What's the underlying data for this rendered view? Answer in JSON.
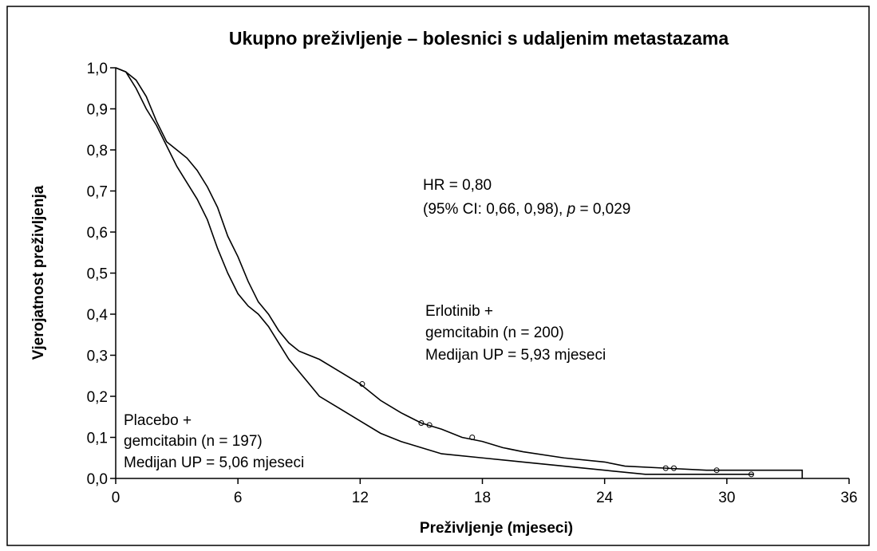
{
  "chart_data": {
    "type": "line",
    "title": "Ukupno preživljenje – bolesnici s udaljenim metastazama",
    "x_label": "Preživljenje (mjeseci)",
    "y_label": "Vjerojatnost preživljenja",
    "xlim": [
      0,
      36
    ],
    "xticks": [
      0,
      6,
      12,
      18,
      24,
      30,
      36
    ],
    "ylim": [
      0,
      1
    ],
    "yticks": [
      {
        "value": 0,
        "label": "0,0"
      },
      {
        "value": 0.1,
        "label": "0,1"
      },
      {
        "value": 0.2,
        "label": "0,2"
      },
      {
        "value": 0.3,
        "label": "0,3"
      },
      {
        "value": 0.4,
        "label": "0,4"
      },
      {
        "value": 0.5,
        "label": "0,5"
      },
      {
        "value": 0.6,
        "label": "0,6"
      },
      {
        "value": 0.7,
        "label": "0,7"
      },
      {
        "value": 0.8,
        "label": "0,8"
      },
      {
        "value": 0.9,
        "label": "0,9"
      },
      {
        "value": 1,
        "label": "1,0"
      }
    ],
    "series": [
      {
        "color": "#000000",
        "x": [
          0,
          0.5,
          1,
          1.5,
          2,
          2.5,
          3,
          3.5,
          4,
          4.5,
          5,
          5.5,
          6,
          6.5,
          7,
          7.5,
          8,
          8.5,
          9,
          10,
          11,
          12,
          13,
          14,
          15,
          16,
          17,
          18,
          19,
          20,
          22,
          24,
          25,
          27,
          29,
          31,
          33.7,
          33.7
        ],
        "values": [
          1,
          0.99,
          0.97,
          0.93,
          0.87,
          0.82,
          0.8,
          0.78,
          0.75,
          0.71,
          0.66,
          0.59,
          0.54,
          0.48,
          0.43,
          0.4,
          0.36,
          0.33,
          0.31,
          0.29,
          0.26,
          0.23,
          0.19,
          0.16,
          0.135,
          0.12,
          0.1,
          0.09,
          0.075,
          0.065,
          0.05,
          0.04,
          0.03,
          0.025,
          0.02,
          0.02,
          0.02,
          0
        ],
        "censored": {
          "x": [
            12.1,
            15,
            15.4,
            17.5,
            27,
            27.4,
            29.5
          ],
          "values": [
            0.23,
            0.135,
            0.13,
            0.1,
            0.025,
            0.025,
            0.02
          ]
        }
      },
      {
        "color": "#000000",
        "x": [
          0,
          0.5,
          1,
          1.5,
          2,
          2.5,
          3,
          3.5,
          4,
          4.5,
          5,
          5.5,
          6,
          6.5,
          7,
          7.5,
          8,
          8.5,
          9,
          9.5,
          10,
          11,
          12,
          13,
          14,
          15,
          16,
          18,
          20,
          22,
          24,
          26,
          29,
          31.3
        ],
        "values": [
          1,
          0.99,
          0.95,
          0.9,
          0.86,
          0.81,
          0.76,
          0.72,
          0.68,
          0.63,
          0.56,
          0.5,
          0.45,
          0.42,
          0.4,
          0.37,
          0.33,
          0.29,
          0.26,
          0.23,
          0.2,
          0.17,
          0.14,
          0.11,
          0.09,
          0.075,
          0.06,
          0.05,
          0.04,
          0.03,
          0.02,
          0.01,
          0.01,
          0.01
        ],
        "censored": {
          "x": [
            31.2
          ],
          "values": [
            0.01
          ]
        }
      }
    ],
    "annotations": [
      {
        "lines": [
          [
            "HR = 0,80"
          ],
          [
            "(95% CI: 0,66, 0,98), ",
            "p",
            " = 0,029"
          ]
        ]
      },
      {
        "lines": [
          [
            "Erlotinib +"
          ],
          [
            "gemcitabin (n = 200)"
          ],
          [
            "Medijan UP = 5,93 mjeseci"
          ]
        ]
      },
      {
        "lines": [
          [
            "Placebo +"
          ],
          [
            "gemcitabin (n = 197)"
          ],
          [
            "Medijan UP = 5,06 mjeseci"
          ]
        ]
      }
    ]
  }
}
